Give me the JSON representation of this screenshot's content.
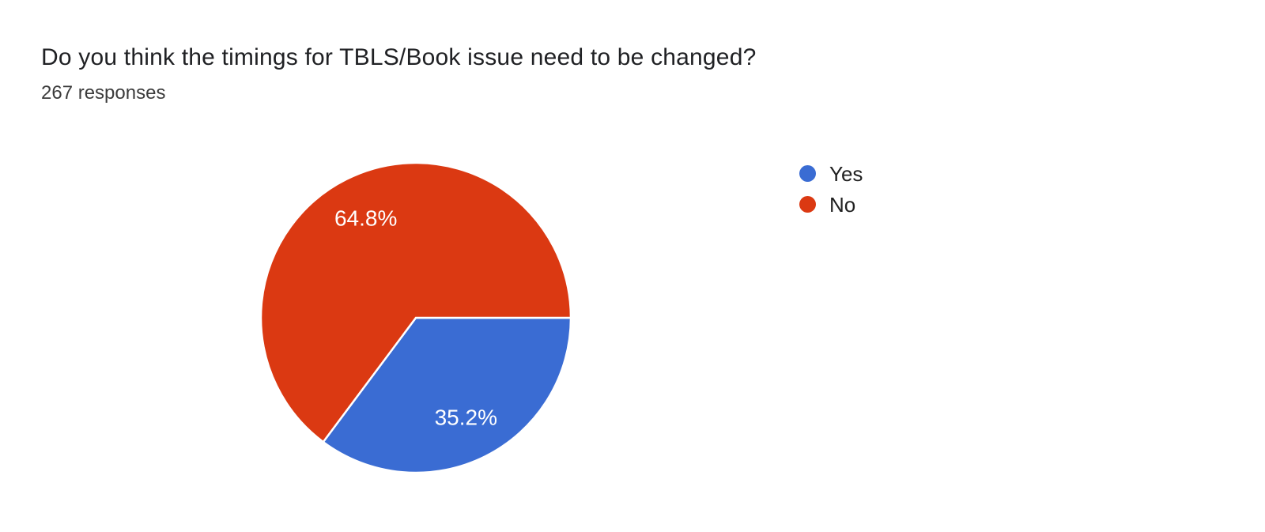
{
  "header": {
    "title": "Do you think the timings for TBLS/Book issue need to be changed?",
    "responses_count": "267 responses"
  },
  "chart_data": {
    "type": "pie",
    "title": "Do you think the timings for TBLS/Book issue need to be changed?",
    "responses_total": 267,
    "start_angle_deg": 90,
    "direction": "clockwise",
    "legend_position": "right",
    "background_color": "#ffffff",
    "label_text_color": "#ffffff",
    "slices": [
      {
        "label": "Yes",
        "value_pct": 35.2,
        "display_label": "35.2%",
        "color": "#3A6CD3"
      },
      {
        "label": "No",
        "value_pct": 64.8,
        "display_label": "64.8%",
        "color": "#DB3912"
      }
    ]
  }
}
